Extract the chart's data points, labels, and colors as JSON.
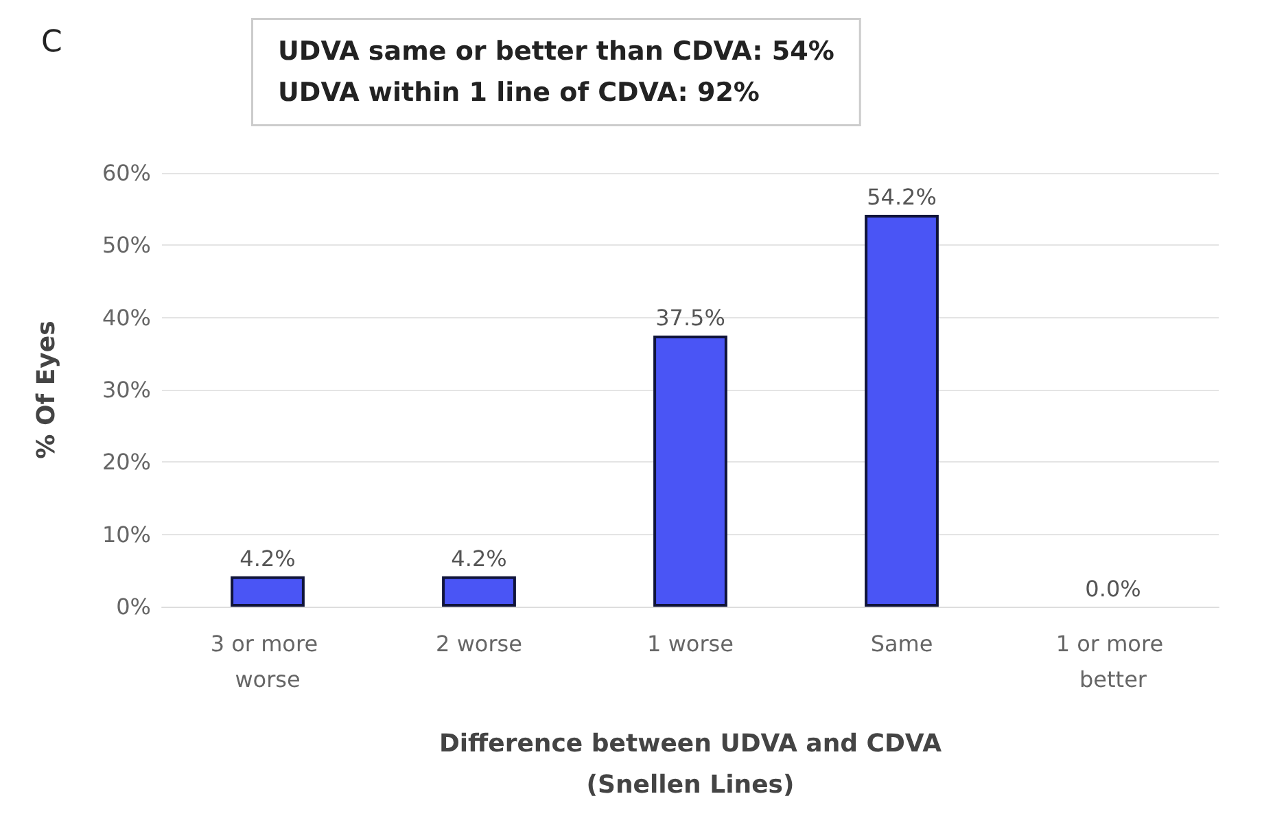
{
  "chart_data": {
    "type": "bar",
    "annotations": [
      "C",
      "UDVA same or better than CDVA: 54%\nUDVA within 1 line of CDVA: 92%"
    ],
    "xlabel": "Difference between UDVA and CDVA\n(Snellen Lines)",
    "ylabel": "% Of Eyes",
    "categories": [
      "3 or more worse",
      "2 worse",
      "1 worse",
      "Same",
      "1 or more better"
    ],
    "values": [
      4.2,
      4.2,
      37.5,
      54.2,
      0.0
    ],
    "value_labels": [
      "4.2%",
      "4.2%",
      "37.5%",
      "54.2%",
      "0.0%"
    ],
    "color": "#4a55f5",
    "ylim": [
      0,
      60
    ],
    "yticks": [
      {
        "value": 0,
        "label": "0%"
      },
      {
        "value": 10,
        "label": "10%"
      },
      {
        "value": 20,
        "label": "20%"
      },
      {
        "value": 30,
        "label": "30%"
      },
      {
        "value": 40,
        "label": "40%"
      },
      {
        "value": 50,
        "label": "50%"
      },
      {
        "value": 60,
        "label": "60%"
      }
    ],
    "grid": "y"
  }
}
